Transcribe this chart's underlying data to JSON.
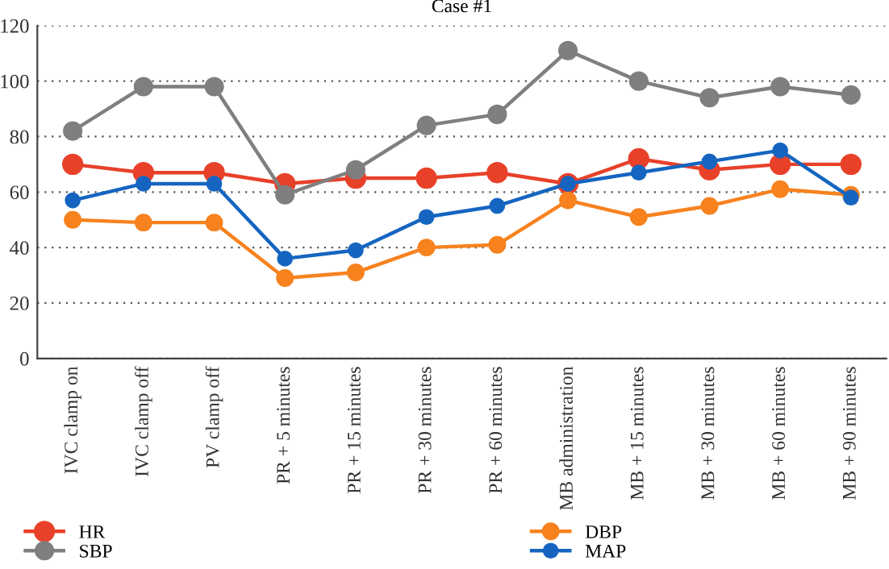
{
  "chart_data": {
    "type": "line",
    "title": "Case #1",
    "categories": [
      "IVC clamp on",
      "IVC clamp off",
      "PV clamp off",
      "PR + 5 minutes",
      "PR + 15 minutes",
      "PR + 30 minutes",
      "PR + 60 minutes",
      "MB administration",
      "MB + 15 minutes",
      "MB + 30 minutes",
      "MB + 60 minutes",
      "MB + 90 minutes"
    ],
    "series": [
      {
        "name": "HR",
        "color": "#e8412a",
        "values": [
          70,
          67,
          67,
          63,
          65,
          65,
          67,
          63,
          72,
          68,
          70,
          70
        ]
      },
      {
        "name": "SBP",
        "color": "#7f7f7f",
        "values": [
          82,
          98,
          98,
          59,
          68,
          84,
          88,
          111,
          100,
          94,
          98,
          95
        ]
      },
      {
        "name": "DBP",
        "color": "#f7821e",
        "values": [
          50,
          49,
          49,
          29,
          31,
          40,
          41,
          57,
          51,
          55,
          61,
          59
        ]
      },
      {
        "name": "MAP",
        "color": "#1565c0",
        "values": [
          57,
          63,
          63,
          36,
          39,
          51,
          55,
          63,
          67,
          71,
          75,
          58
        ]
      }
    ],
    "ylim": [
      0,
      120
    ],
    "yticks": [
      0,
      20,
      40,
      60,
      80,
      100,
      120
    ],
    "grid": "y",
    "legend": "bottom",
    "marker": "circle",
    "line_style": "solid"
  }
}
